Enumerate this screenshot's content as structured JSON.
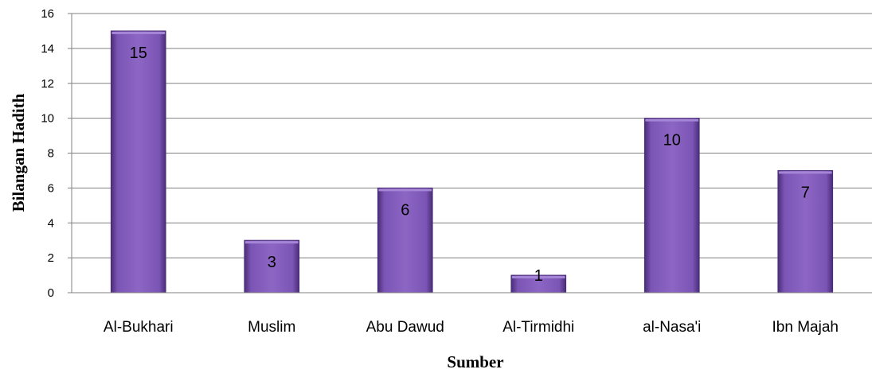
{
  "chart_data": {
    "type": "bar",
    "categories": [
      "Al-Bukhari",
      "Muslim",
      "Abu Dawud",
      "Al-Tirmidhi",
      "al-Nasa'i",
      "Ibn Majah"
    ],
    "values": [
      15,
      3,
      6,
      1,
      10,
      7
    ],
    "data_labels": [
      "15",
      "3",
      "6",
      "1",
      "10",
      "7"
    ],
    "xlabel": "Sumber",
    "ylabel": "Bilangan Hadith",
    "ylim": [
      0,
      16
    ],
    "yticks": [
      "0",
      "2",
      "4",
      "6",
      "8",
      "10",
      "12",
      "14",
      "16"
    ],
    "grid": true,
    "bar_color": "#7b52b0"
  }
}
